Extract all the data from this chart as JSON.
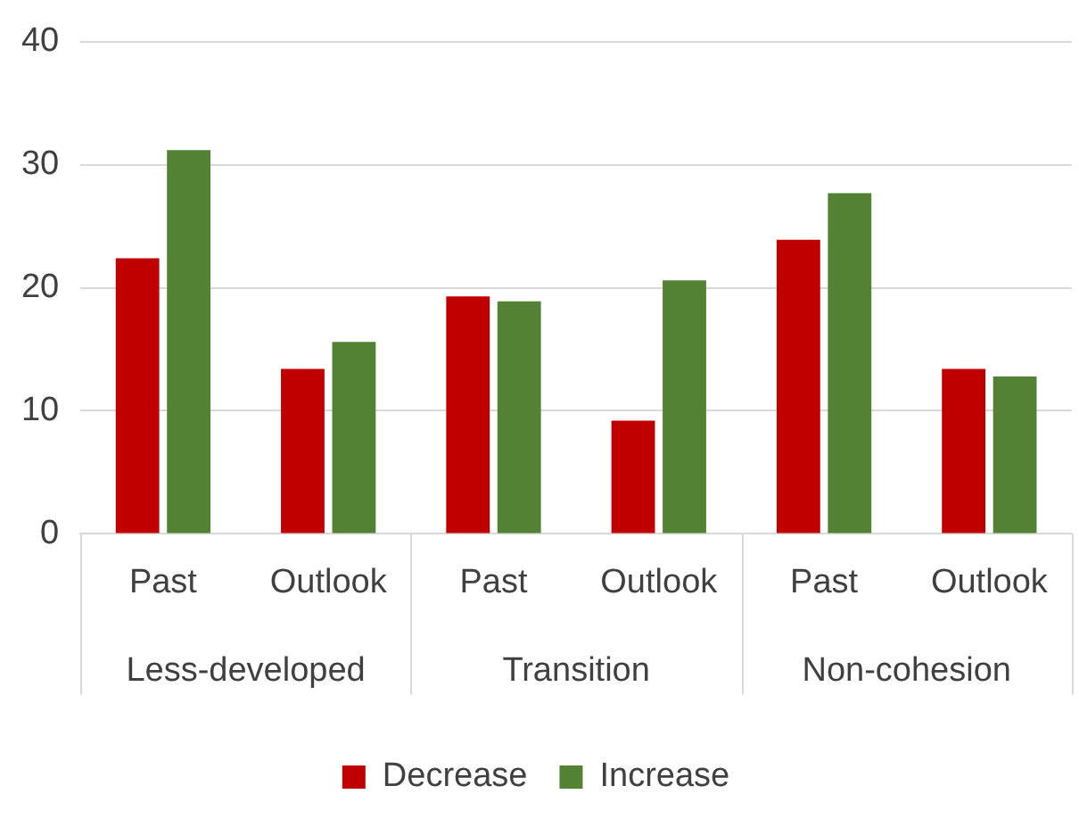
{
  "chart_data": {
    "type": "bar",
    "categories": [
      "Past",
      "Outlook",
      "Past",
      "Outlook",
      "Past",
      "Outlook"
    ],
    "annotations": [
      "Less-developed",
      "Transition",
      "Non-cohesion"
    ],
    "series": [
      {
        "name": "Decrease",
        "color": "#c00000",
        "values": [
          22.4,
          13.4,
          19.3,
          9.2,
          23.9,
          13.4
        ]
      },
      {
        "name": "Increase",
        "color": "#548235",
        "values": [
          31.2,
          15.6,
          18.9,
          20.6,
          27.7,
          12.8
        ]
      }
    ],
    "ylim": [
      0,
      40
    ],
    "yticks": [
      0,
      10,
      20,
      30,
      40
    ],
    "grid": "y",
    "legend": "bottom"
  }
}
